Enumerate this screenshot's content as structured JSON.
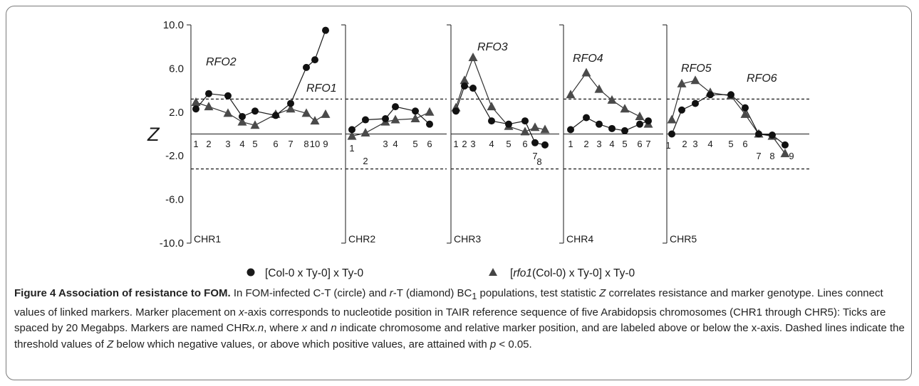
{
  "chart_data": {
    "type": "line",
    "ylabel": "Z",
    "ylim": [
      -10,
      10
    ],
    "yticks": [
      "10.0",
      "6.0",
      "2.0",
      "-2.0",
      "-6.0",
      "-10.0"
    ],
    "threshold": 3.2,
    "panels": [
      {
        "label": "CHR1",
        "qtl": [
          "RFO2",
          "RFO1"
        ],
        "tick_labels": [
          "1",
          "2",
          "3",
          "4",
          "5",
          "6",
          "7",
          "8",
          "10",
          "9"
        ],
        "circle": [
          2.3,
          3.7,
          3.5,
          1.6,
          2.1,
          1.7,
          2.8,
          6.1,
          6.8,
          9.5
        ],
        "triangle": [
          2.9,
          2.5,
          1.9,
          1.1,
          0.8,
          1.8,
          2.3,
          1.9,
          1.2,
          1.8
        ]
      },
      {
        "label": "CHR2",
        "tick_labels": [
          "1",
          "2",
          "3",
          "4",
          "5",
          "6"
        ],
        "circle": [
          0.4,
          1.3,
          1.4,
          2.5,
          2.1,
          0.9
        ],
        "triangle": [
          -0.2,
          0.1,
          1.1,
          1.3,
          1.4,
          2.0
        ]
      },
      {
        "label": "CHR3",
        "qtl": [
          "RFO3"
        ],
        "tick_labels": [
          "1",
          "2",
          "3",
          "4",
          "5",
          "6",
          "7",
          "8"
        ],
        "circle": [
          2.1,
          4.4,
          4.2,
          1.2,
          0.9,
          1.2,
          -0.8,
          -1.0
        ],
        "triangle": [
          2.4,
          4.9,
          7.0,
          2.5,
          0.7,
          0.2,
          0.6,
          0.4
        ]
      },
      {
        "label": "CHR4",
        "qtl": [
          "RFO4"
        ],
        "tick_labels": [
          "1",
          "2",
          "3",
          "4",
          "5",
          "6",
          "7"
        ],
        "circle": [
          0.4,
          1.5,
          0.9,
          0.5,
          0.3,
          0.9,
          1.2
        ],
        "triangle": [
          3.6,
          5.6,
          4.1,
          3.1,
          2.3,
          1.6,
          0.9
        ]
      },
      {
        "label": "CHR5",
        "qtl": [
          "RFO5",
          "RFO6"
        ],
        "tick_labels": [
          "1",
          "2",
          "3",
          "4",
          "5",
          "6",
          "7",
          "8",
          "9"
        ],
        "circle": [
          0.0,
          2.2,
          2.8,
          3.6,
          3.6,
          2.4,
          0.0,
          -0.1,
          -1.0
        ],
        "triangle": [
          1.3,
          4.6,
          4.9,
          3.8,
          3.5,
          1.8,
          0.0,
          -0.2,
          -1.8
        ]
      }
    ],
    "legend": [
      "[Col-0 x Ty-0] x Ty-0",
      "[rfo1(Col-0) x Ty-0] x Ty-0"
    ]
  },
  "caption": {
    "title": "Figure 4 Association of resistance to FOM.",
    "part1": " In FOM-infected C-T (circle) and ",
    "r": "r",
    "part2": "-T (diamond) BC",
    "sub1": "1",
    "part3": " populations, test statistic ",
    "z": "Z",
    "part4": " correlates resistance and marker genotype. Lines connect values of linked markers. Marker placement on ",
    "x": "x",
    "part5": "-axis corresponds to nucleotide position in TAIR reference sequence of five Arabidopsis chromosomes (CHR1 through CHR5): Ticks are spaced by 20 Megabps. Markers are named CHR",
    "xn": "x.n",
    "part6": ", where ",
    "x2": "x",
    "and": " and ",
    "n": "n",
    "part7": " indicate chromosome and relative marker position, and are labeled above or below the x-axis. Dashed lines indicate the threshold values of ",
    "z2": "Z",
    "part8": " below which negative values, or above which positive values, are attained with ",
    "p": "p",
    "part9": " < 0.05."
  }
}
